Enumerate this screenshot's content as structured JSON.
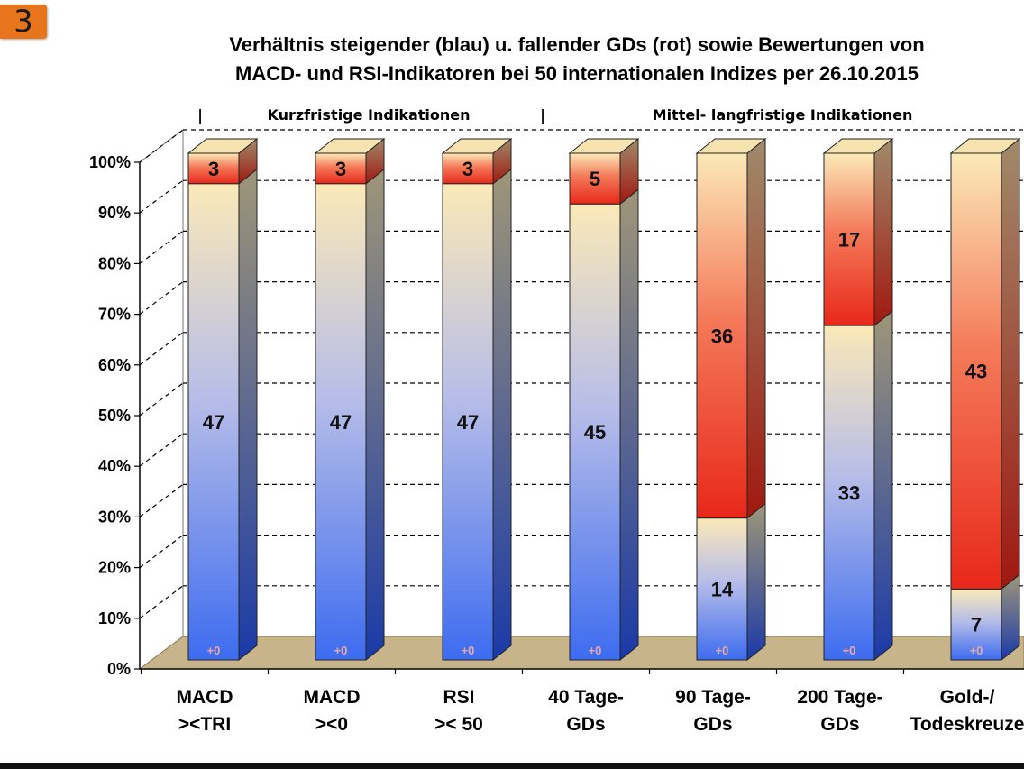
{
  "badge": "3",
  "title_lines": [
    "Verhältnis steigender (blau) u. fallender GDs (rot) sowie Bewertungen von",
    "MACD- und RSI-Indikatoren bei 50 internationalen Indizes per 26.10.2015"
  ],
  "colors": {
    "badge": "#e8741c",
    "rising_blue": "#3d6cf0",
    "neutral_cream": "#fbe9b8",
    "falling_red": "#e8281a",
    "floor": "#c8b48a"
  },
  "chart_data": {
    "type": "bar",
    "stacked": true,
    "percent": true,
    "title": "Verhältnis steigender (blau) u. fallender GDs (rot) sowie Bewertungen von MACD- und RSI-Indikatoren bei 50 internationalen Indizes per 26.10.2015",
    "sections": [
      {
        "label": "Kurzfristige Indikationen",
        "categories": [
          0,
          1,
          2
        ]
      },
      {
        "label": "Mittel- langfristige Indikationen",
        "categories": [
          3,
          4,
          5,
          6
        ]
      }
    ],
    "categories": [
      [
        "MACD",
        "><TRI"
      ],
      [
        "MACD",
        "><0"
      ],
      [
        "RSI",
        ">< 50"
      ],
      [
        "40 Tage-",
        "GDs"
      ],
      [
        "90 Tage-",
        "GDs"
      ],
      [
        "200 Tage-",
        "GDs"
      ],
      [
        "Gold-/",
        "Todeskreuze"
      ]
    ],
    "series": [
      {
        "values": [
          47,
          47,
          47,
          45,
          14,
          33,
          7
        ]
      },
      {
        "values": [
          3,
          3,
          3,
          5,
          36,
          17,
          43
        ]
      }
    ],
    "neutral_labels": [
      "+0",
      "+0",
      "+0",
      "+0",
      "+0",
      "+0",
      "+0"
    ],
    "yticks": [
      "0%",
      "10%",
      "20%",
      "30%",
      "40%",
      "50%",
      "60%",
      "70%",
      "80%",
      "90%",
      "100%"
    ],
    "ylim": [
      0,
      100
    ],
    "grid": true,
    "legend": "none"
  }
}
